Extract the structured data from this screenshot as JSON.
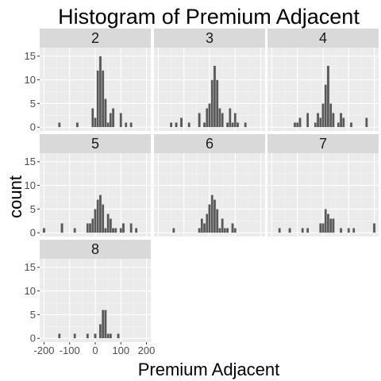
{
  "chart_data": {
    "type": "bar",
    "title": "Histogram of Premium Adjacent",
    "xlabel": "Premium Adjacent",
    "ylabel": "count",
    "xlim": [
      -217,
      217
    ],
    "ylim": [
      -0.8,
      16.8
    ],
    "x_ticks": [
      -200,
      -100,
      0,
      100,
      200
    ],
    "x_tick_labels": [
      "-200",
      "-100",
      "0",
      "100",
      "200"
    ],
    "y_ticks": [
      0,
      5,
      10,
      15
    ],
    "y_tick_labels": [
      "0",
      "5",
      "10",
      "15"
    ],
    "bin_width": 10,
    "grid": true,
    "layout": {
      "ncol": 3,
      "nrow": 3
    },
    "panels": [
      {
        "label": "2",
        "bins": [
          {
            "x": -140,
            "count": 1
          },
          {
            "x": -70,
            "count": 1
          },
          {
            "x": -10,
            "count": 4
          },
          {
            "x": 0,
            "count": 2
          },
          {
            "x": 10,
            "count": 12
          },
          {
            "x": 20,
            "count": 15
          },
          {
            "x": 30,
            "count": 12
          },
          {
            "x": 40,
            "count": 6
          },
          {
            "x": 50,
            "count": 1
          },
          {
            "x": 60,
            "count": 3
          },
          {
            "x": 70,
            "count": 4
          },
          {
            "x": 100,
            "count": 3
          },
          {
            "x": 120,
            "count": 1
          },
          {
            "x": 140,
            "count": 1
          }
        ]
      },
      {
        "label": "3",
        "bins": [
          {
            "x": -150,
            "count": 1
          },
          {
            "x": -130,
            "count": 1
          },
          {
            "x": -110,
            "count": 2
          },
          {
            "x": -80,
            "count": 1
          },
          {
            "x": -40,
            "count": 3
          },
          {
            "x": -20,
            "count": 1
          },
          {
            "x": -10,
            "count": 4
          },
          {
            "x": 0,
            "count": 5
          },
          {
            "x": 10,
            "count": 10
          },
          {
            "x": 20,
            "count": 13
          },
          {
            "x": 30,
            "count": 10
          },
          {
            "x": 40,
            "count": 4
          },
          {
            "x": 50,
            "count": 3
          },
          {
            "x": 70,
            "count": 1
          },
          {
            "x": 80,
            "count": 4
          },
          {
            "x": 90,
            "count": 1
          },
          {
            "x": 100,
            "count": 3
          },
          {
            "x": 110,
            "count": 1
          },
          {
            "x": 140,
            "count": 1
          }
        ]
      },
      {
        "label": "4",
        "bins": [
          {
            "x": -110,
            "count": 1
          },
          {
            "x": -100,
            "count": 1
          },
          {
            "x": -90,
            "count": 2
          },
          {
            "x": -60,
            "count": 3
          },
          {
            "x": -30,
            "count": 1
          },
          {
            "x": -20,
            "count": 3
          },
          {
            "x": -10,
            "count": 2
          },
          {
            "x": 0,
            "count": 5
          },
          {
            "x": 10,
            "count": 9
          },
          {
            "x": 20,
            "count": 13
          },
          {
            "x": 30,
            "count": 5
          },
          {
            "x": 40,
            "count": 3
          },
          {
            "x": 60,
            "count": 1
          },
          {
            "x": 70,
            "count": 3
          },
          {
            "x": 80,
            "count": 2
          },
          {
            "x": 110,
            "count": 1
          },
          {
            "x": 170,
            "count": 2
          }
        ]
      },
      {
        "label": "5",
        "bins": [
          {
            "x": -200,
            "count": 1
          },
          {
            "x": -130,
            "count": 2
          },
          {
            "x": -80,
            "count": 1
          },
          {
            "x": -30,
            "count": 2
          },
          {
            "x": -20,
            "count": 2
          },
          {
            "x": -10,
            "count": 3
          },
          {
            "x": 0,
            "count": 5
          },
          {
            "x": 10,
            "count": 7
          },
          {
            "x": 20,
            "count": 8
          },
          {
            "x": 30,
            "count": 6
          },
          {
            "x": 40,
            "count": 1
          },
          {
            "x": 50,
            "count": 4
          },
          {
            "x": 60,
            "count": 3
          },
          {
            "x": 70,
            "count": 1
          },
          {
            "x": 80,
            "count": 1
          },
          {
            "x": 100,
            "count": 1
          },
          {
            "x": 110,
            "count": 2
          },
          {
            "x": 140,
            "count": 2
          },
          {
            "x": 160,
            "count": 1
          }
        ]
      },
      {
        "label": "6",
        "bins": [
          {
            "x": -140,
            "count": 1
          },
          {
            "x": -40,
            "count": 1
          },
          {
            "x": -30,
            "count": 3
          },
          {
            "x": -20,
            "count": 2
          },
          {
            "x": -10,
            "count": 4
          },
          {
            "x": 0,
            "count": 6
          },
          {
            "x": 10,
            "count": 8
          },
          {
            "x": 20,
            "count": 7
          },
          {
            "x": 30,
            "count": 5
          },
          {
            "x": 40,
            "count": 1
          },
          {
            "x": 50,
            "count": 3
          },
          {
            "x": 60,
            "count": 1
          },
          {
            "x": 70,
            "count": 1
          },
          {
            "x": 90,
            "count": 2
          },
          {
            "x": 100,
            "count": 1
          }
        ]
      },
      {
        "label": "7",
        "bins": [
          {
            "x": -170,
            "count": 1
          },
          {
            "x": -130,
            "count": 1
          },
          {
            "x": -80,
            "count": 1
          },
          {
            "x": -60,
            "count": 1
          },
          {
            "x": -10,
            "count": 2
          },
          {
            "x": 0,
            "count": 2
          },
          {
            "x": 10,
            "count": 5
          },
          {
            "x": 20,
            "count": 4
          },
          {
            "x": 30,
            "count": 3
          },
          {
            "x": 40,
            "count": 3
          },
          {
            "x": 70,
            "count": 1
          },
          {
            "x": 100,
            "count": 1
          },
          {
            "x": 120,
            "count": 1
          },
          {
            "x": 200,
            "count": 2
          }
        ]
      },
      {
        "label": "8",
        "bins": [
          {
            "x": -140,
            "count": 1
          },
          {
            "x": -80,
            "count": 1
          },
          {
            "x": -30,
            "count": 1
          },
          {
            "x": 0,
            "count": 1
          },
          {
            "x": 20,
            "count": 3
          },
          {
            "x": 30,
            "count": 6
          },
          {
            "x": 40,
            "count": 6
          },
          {
            "x": 50,
            "count": 1
          },
          {
            "x": 60,
            "count": 1
          },
          {
            "x": 90,
            "count": 1
          }
        ]
      }
    ]
  }
}
